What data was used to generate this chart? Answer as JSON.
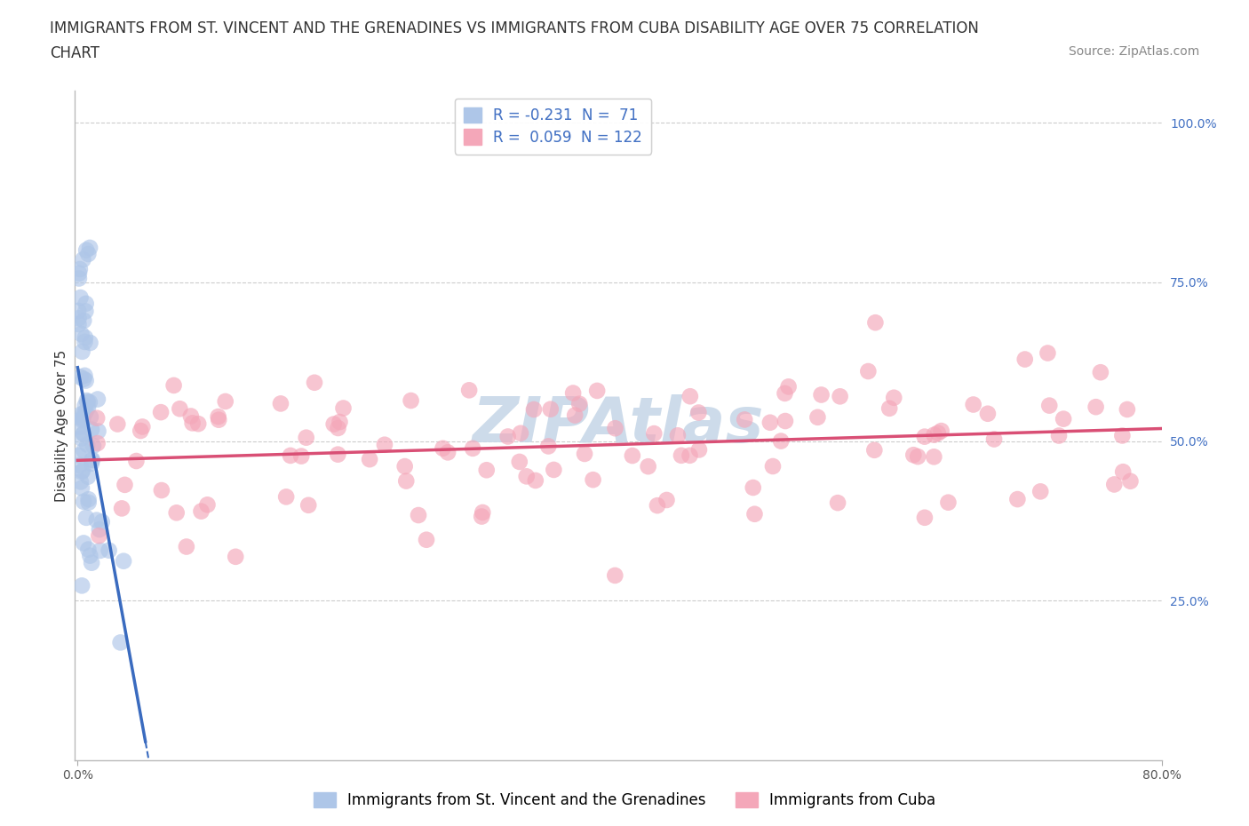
{
  "title_line1": "IMMIGRANTS FROM ST. VINCENT AND THE GRENADINES VS IMMIGRANTS FROM CUBA DISABILITY AGE OVER 75 CORRELATION",
  "title_line2": "CHART",
  "source_text": "Source: ZipAtlas.com",
  "ylabel": "Disability Age Over 75",
  "xlim": [
    -0.002,
    0.8
  ],
  "ylim": [
    0.0,
    1.05
  ],
  "ytick_values": [
    0.25,
    0.5,
    0.75,
    1.0
  ],
  "ytick_labels": [
    "25.0%",
    "50.0%",
    "75.0%",
    "100.0%"
  ],
  "xtick_values": [
    0.0,
    0.8
  ],
  "xtick_labels": [
    "0.0%",
    "80.0%"
  ],
  "legend_label1": "Immigrants from St. Vincent and the Grenadines",
  "legend_label2": "Immigrants from Cuba",
  "color_blue": "#aec6e8",
  "color_pink": "#f4a7b9",
  "trendline_blue_color": "#3a6bbf",
  "trendline_pink_color": "#d94f75",
  "watermark_color": "#c8d8e8",
  "blue_R": -0.231,
  "blue_N": 71,
  "pink_R": 0.059,
  "pink_N": 122,
  "title_fontsize": 12,
  "axis_label_fontsize": 11,
  "tick_fontsize": 10,
  "legend_fontsize": 12,
  "source_fontsize": 10
}
